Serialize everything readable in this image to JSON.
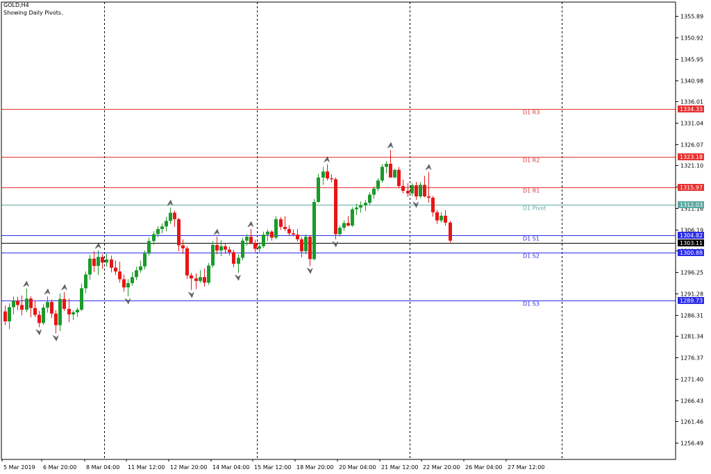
{
  "header": {
    "symbol_line": "GOLD,H4",
    "indicator_line": "Showing Daily Pivots."
  },
  "colors": {
    "background": "#ffffff",
    "bull": "#1a9a2a",
    "bear": "#e81515",
    "resistance": "#e83030",
    "support": "#2a2ae8",
    "pivot": "#5aa8a0",
    "current": "#000000"
  },
  "chart_data": {
    "type": "candlestick",
    "symbol": "GOLD",
    "timeframe": "H4",
    "ylim": [
      1252.0,
      1360.0
    ],
    "y_ticks": [
      "1355.89",
      "1350.92",
      "1345.95",
      "1340.98",
      "1336.01",
      "1331.04",
      "1326.07",
      "1321.10",
      "1316.13",
      "1311.16",
      "1306.19",
      "1301.22",
      "1296.25",
      "1291.28",
      "1286.31",
      "1281.34",
      "1276.37",
      "1271.40",
      "1266.43",
      "1261.46",
      "1256.49"
    ],
    "x_ticks": [
      "5 Mar 2019",
      "6 Mar 20:00",
      "8 Mar 04:00",
      "11 Mar 12:00",
      "12 Mar 20:00",
      "14 Mar 04:00",
      "15 Mar 12:00",
      "18 Mar 20:00",
      "20 Mar 04:00",
      "21 Mar 12:00",
      "22 Mar 20:00",
      "26 Mar 04:00",
      "27 Mar 12:00"
    ],
    "separator_bars": [
      24,
      60,
      96,
      132,
      168
    ],
    "levels": [
      {
        "name": "D1  R3",
        "value": 1334.33,
        "label": "1334.33",
        "kind": "resistance"
      },
      {
        "name": "D1  R2",
        "value": 1323.18,
        "label": "1323.18",
        "kind": "resistance"
      },
      {
        "name": "D1  R1",
        "value": 1315.97,
        "label": "1315.97",
        "kind": "resistance"
      },
      {
        "name": "D1  Pivot",
        "value": 1312.03,
        "label": "1312.03",
        "kind": "pivot"
      },
      {
        "name": "D1  S1",
        "value": 1304.82,
        "label": "1304.82",
        "kind": "support"
      },
      {
        "name": "D1  S2",
        "value": 1300.88,
        "label": "1300.88",
        "kind": "support"
      },
      {
        "name": "D1  S3",
        "value": 1289.73,
        "label": "1289.73",
        "kind": "support"
      }
    ],
    "current_price": {
      "value": 1303.11,
      "label": "1303.11"
    },
    "candles": [
      [
        1287.1,
        1288.5,
        1283.9,
        1284.8
      ],
      [
        1284.8,
        1289.0,
        1283.0,
        1288.1
      ],
      [
        1288.1,
        1290.6,
        1286.4,
        1289.6
      ],
      [
        1289.6,
        1290.5,
        1287.4,
        1288.6
      ],
      [
        1288.6,
        1290.8,
        1286.2,
        1287.5
      ],
      [
        1287.5,
        1292.4,
        1286.9,
        1290.1
      ],
      [
        1290.1,
        1290.6,
        1285.7,
        1287.9
      ],
      [
        1287.9,
        1289.6,
        1285.8,
        1286.3
      ],
      [
        1286.3,
        1287.2,
        1283.4,
        1284.4
      ],
      [
        1284.4,
        1288.8,
        1284.0,
        1288.0
      ],
      [
        1288.0,
        1290.6,
        1286.8,
        1289.3
      ],
      [
        1289.3,
        1289.9,
        1285.6,
        1286.6
      ],
      [
        1286.6,
        1287.4,
        1282.0,
        1283.9
      ],
      [
        1283.9,
        1291.3,
        1282.5,
        1290.0
      ],
      [
        1290.0,
        1291.6,
        1287.2,
        1287.7
      ],
      [
        1287.7,
        1290.1,
        1284.6,
        1286.4
      ],
      [
        1286.4,
        1287.3,
        1285.1,
        1286.9
      ],
      [
        1286.9,
        1288.0,
        1285.8,
        1287.5
      ],
      [
        1287.5,
        1293.6,
        1287.2,
        1292.5
      ],
      [
        1292.5,
        1296.4,
        1291.3,
        1295.7
      ],
      [
        1295.7,
        1300.3,
        1294.5,
        1299.4
      ],
      [
        1299.4,
        1301.1,
        1296.3,
        1297.7
      ],
      [
        1297.7,
        1301.3,
        1295.6,
        1299.8
      ],
      [
        1299.8,
        1300.4,
        1297.0,
        1298.5
      ],
      [
        1298.5,
        1300.5,
        1297.5,
        1299.2
      ],
      [
        1299.2,
        1300.1,
        1296.2,
        1297.3
      ],
      [
        1297.3,
        1299.0,
        1295.6,
        1296.4
      ],
      [
        1296.4,
        1298.7,
        1293.8,
        1294.6
      ],
      [
        1294.6,
        1295.7,
        1291.7,
        1292.7
      ],
      [
        1292.7,
        1294.6,
        1290.6,
        1293.7
      ],
      [
        1293.7,
        1296.3,
        1293.1,
        1295.1
      ],
      [
        1295.1,
        1297.5,
        1294.4,
        1296.7
      ],
      [
        1296.7,
        1298.9,
        1296.1,
        1297.6
      ],
      [
        1297.6,
        1301.3,
        1296.9,
        1300.6
      ],
      [
        1300.6,
        1304.3,
        1300.1,
        1303.5
      ],
      [
        1303.5,
        1305.8,
        1302.6,
        1305.1
      ],
      [
        1305.1,
        1306.9,
        1304.4,
        1306.3
      ],
      [
        1306.3,
        1307.6,
        1305.3,
        1306.9
      ],
      [
        1306.9,
        1309.1,
        1305.8,
        1308.2
      ],
      [
        1308.2,
        1311.3,
        1307.5,
        1310.1
      ],
      [
        1310.1,
        1310.6,
        1306.8,
        1308.6
      ],
      [
        1308.6,
        1308.9,
        1301.1,
        1302.5
      ],
      [
        1302.5,
        1303.9,
        1300.5,
        1301.8
      ],
      [
        1301.8,
        1302.3,
        1294.7,
        1295.5
      ],
      [
        1295.5,
        1296.1,
        1292.1,
        1294.8
      ],
      [
        1294.8,
        1296.0,
        1292.3,
        1294.2
      ],
      [
        1294.2,
        1296.7,
        1293.8,
        1295.1
      ],
      [
        1295.1,
        1297.1,
        1292.9,
        1293.8
      ],
      [
        1293.8,
        1298.4,
        1293.3,
        1297.8
      ],
      [
        1297.8,
        1303.5,
        1297.3,
        1302.6
      ],
      [
        1302.6,
        1304.5,
        1300.4,
        1301.3
      ],
      [
        1301.3,
        1303.7,
        1300.0,
        1302.3
      ],
      [
        1302.3,
        1303.0,
        1300.5,
        1301.5
      ],
      [
        1301.5,
        1302.2,
        1300.1,
        1300.9
      ],
      [
        1300.9,
        1301.5,
        1297.4,
        1298.2
      ],
      [
        1298.2,
        1300.4,
        1296.1,
        1299.6
      ],
      [
        1299.6,
        1304.3,
        1299.0,
        1303.6
      ],
      [
        1303.6,
        1305.1,
        1302.4,
        1304.5
      ],
      [
        1304.5,
        1306.3,
        1302.7,
        1303.1
      ],
      [
        1303.1,
        1303.8,
        1300.9,
        1301.7
      ],
      [
        1301.7,
        1303.2,
        1300.9,
        1302.3
      ],
      [
        1302.3,
        1305.7,
        1301.9,
        1305.0
      ],
      [
        1305.0,
        1306.2,
        1303.5,
        1305.7
      ],
      [
        1305.7,
        1306.0,
        1303.6,
        1304.3
      ],
      [
        1304.3,
        1309.3,
        1303.9,
        1308.6
      ],
      [
        1308.6,
        1309.1,
        1306.1,
        1306.8
      ],
      [
        1306.8,
        1309.3,
        1305.8,
        1306.3
      ],
      [
        1306.3,
        1307.2,
        1304.7,
        1305.3
      ],
      [
        1305.3,
        1306.2,
        1304.6,
        1305.0
      ],
      [
        1305.0,
        1306.3,
        1303.4,
        1303.9
      ],
      [
        1303.9,
        1304.4,
        1299.7,
        1301.1
      ],
      [
        1301.1,
        1305.1,
        1300.4,
        1304.5
      ],
      [
        1304.5,
        1304.8,
        1297.7,
        1299.3
      ],
      [
        1299.3,
        1313.3,
        1299.0,
        1312.6
      ],
      [
        1312.6,
        1319.2,
        1312.4,
        1318.3
      ],
      [
        1318.3,
        1320.8,
        1316.6,
        1319.7
      ],
      [
        1319.7,
        1321.4,
        1317.6,
        1318.1
      ],
      [
        1318.1,
        1319.1,
        1317.2,
        1317.9
      ],
      [
        1317.9,
        1318.3,
        1303.9,
        1305.1
      ],
      [
        1305.1,
        1307.1,
        1304.5,
        1306.6
      ],
      [
        1306.6,
        1308.3,
        1305.9,
        1307.7
      ],
      [
        1307.7,
        1309.3,
        1306.9,
        1307.1
      ],
      [
        1307.1,
        1311.4,
        1306.8,
        1310.9
      ],
      [
        1310.9,
        1312.2,
        1309.6,
        1311.3
      ],
      [
        1311.3,
        1312.7,
        1310.1,
        1311.8
      ],
      [
        1311.8,
        1313.1,
        1310.5,
        1312.4
      ],
      [
        1312.4,
        1314.9,
        1312.0,
        1314.3
      ],
      [
        1314.3,
        1316.2,
        1313.3,
        1315.7
      ],
      [
        1315.7,
        1318.1,
        1315.1,
        1317.6
      ],
      [
        1317.6,
        1321.4,
        1317.1,
        1320.8
      ],
      [
        1320.8,
        1322.1,
        1319.3,
        1321.5
      ],
      [
        1321.5,
        1324.7,
        1318.6,
        1318.3
      ],
      [
        1318.3,
        1320.3,
        1318.2,
        1320.1
      ],
      [
        1320.1,
        1320.8,
        1315.8,
        1316.3
      ],
      [
        1316.3,
        1317.8,
        1314.6,
        1315.2
      ],
      [
        1315.2,
        1317.0,
        1313.8,
        1314.6
      ],
      [
        1314.6,
        1317.0,
        1314.0,
        1316.5
      ],
      [
        1316.5,
        1317.3,
        1313.1,
        1313.9
      ],
      [
        1313.9,
        1317.2,
        1313.5,
        1316.6
      ],
      [
        1316.6,
        1318.7,
        1313.7,
        1313.9
      ],
      [
        1313.9,
        1319.6,
        1312.4,
        1313.6
      ],
      [
        1313.6,
        1314.0,
        1309.2,
        1310.2
      ],
      [
        1310.2,
        1310.7,
        1307.5,
        1308.3
      ],
      [
        1308.3,
        1310.2,
        1307.8,
        1309.4
      ],
      [
        1309.4,
        1310.7,
        1307.1,
        1307.8
      ],
      [
        1307.8,
        1308.2,
        1303.1,
        1303.6
      ]
    ]
  }
}
